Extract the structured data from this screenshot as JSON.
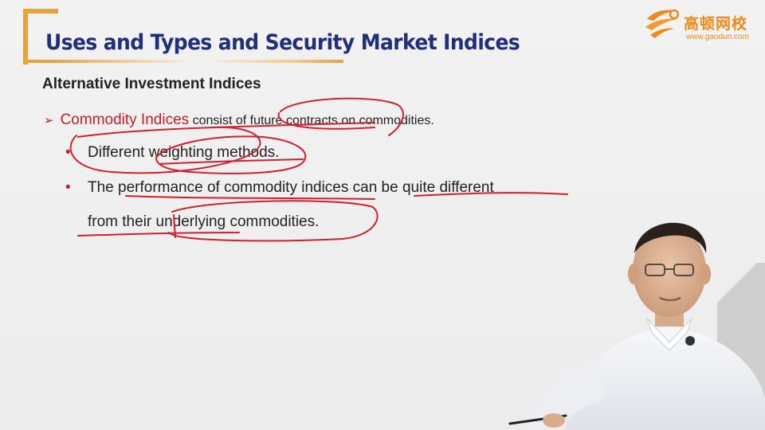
{
  "slide": {
    "title": "Uses and Types and Security Market Indices",
    "subheading": "Alternative Investment Indices",
    "point": {
      "arrow": "➢",
      "term": "Commodity Indices",
      "definition": " consist of future contracts on commodities."
    },
    "bullets": [
      "Different weighting methods.",
      "The performance of commodity indices can be quite different",
      "from their underlying commodities."
    ],
    "bullet_symbol": "•"
  },
  "logo": {
    "name_cn": "高顿网校",
    "url": "www.gaodun.com"
  },
  "colors": {
    "title": "#1f2f7a",
    "accent_orange": "#e8a23a",
    "term_red": "#c2202a",
    "ink_red": "#d1202f"
  }
}
